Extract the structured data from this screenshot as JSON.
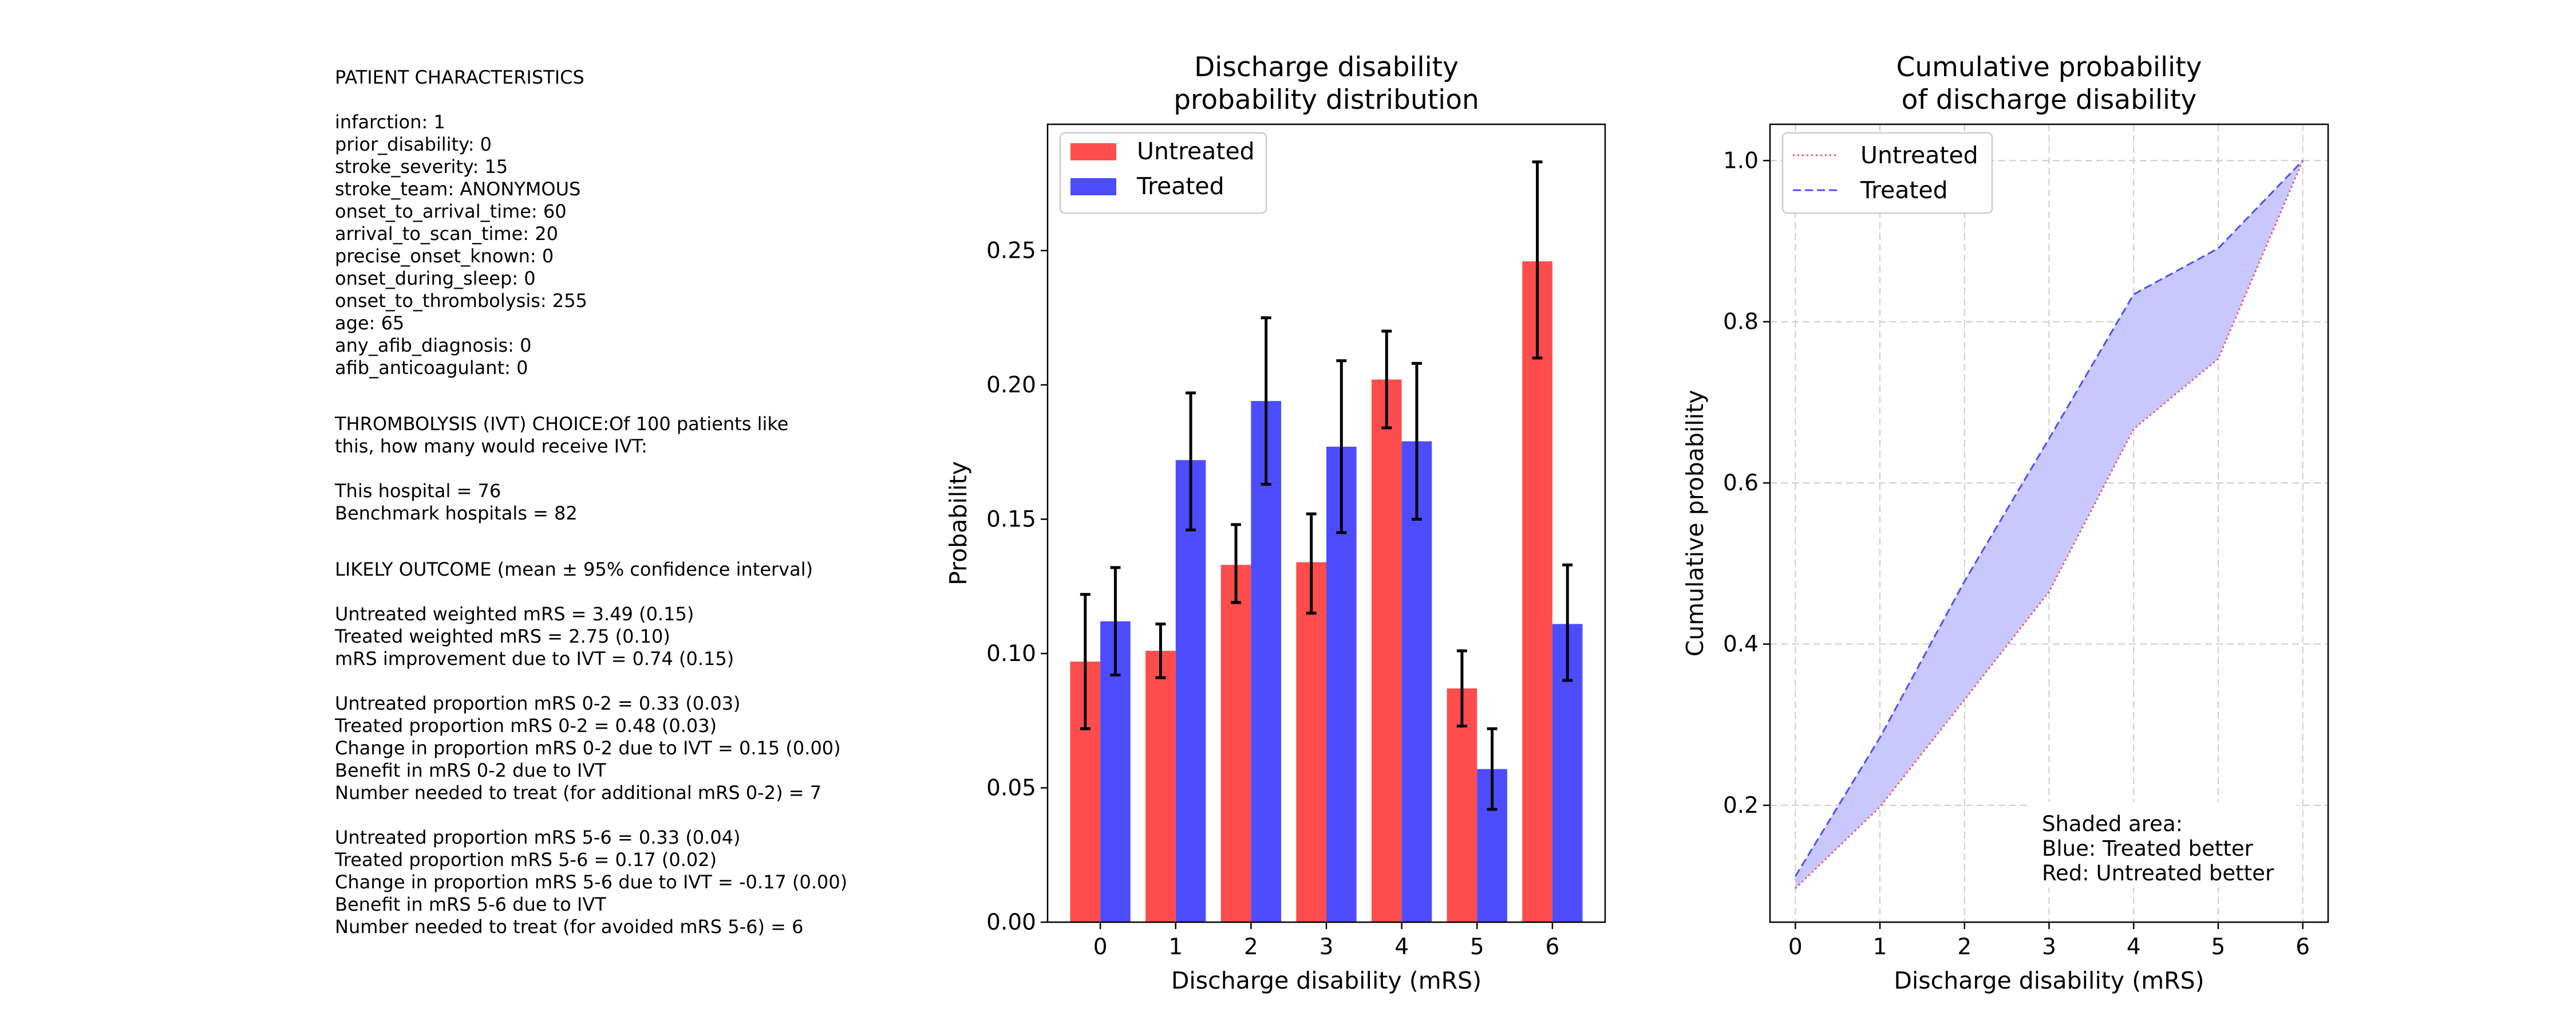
{
  "text_panel": {
    "patient_heading": "PATIENT CHARACTERISTICS",
    "patient_lines": [
      "infarction: 1",
      "prior_disability: 0",
      "stroke_severity: 15",
      "stroke_team: ANONYMOUS",
      "onset_to_arrival_time: 60",
      "arrival_to_scan_time: 20",
      "precise_onset_known: 0",
      "onset_during_sleep: 0",
      "onset_to_thrombolysis: 255",
      "age: 65",
      "any_afib_diagnosis: 0",
      "afib_anticoagulant: 0"
    ],
    "ivt_heading_lines": [
      "THROMBOLYSIS (IVT) CHOICE:Of 100 patients like",
      "this, how many would receive IVT:"
    ],
    "ivt_lines": [
      "This hospital = 76",
      "Benchmark hospitals = 82"
    ],
    "outcome_heading": "LIKELY OUTCOME (mean ± 95% confidence interval)",
    "outcome_group1": [
      "Untreated weighted mRS = 3.49 (0.15)",
      "Treated weighted mRS = 2.75 (0.10)",
      "mRS improvement due to IVT = 0.74 (0.15)"
    ],
    "outcome_group2": [
      "Untreated proportion mRS 0-2 = 0.33 (0.03)",
      "Treated proportion mRS 0-2 = 0.48 (0.03)",
      "Change in proportion mRS 0-2 due to IVT = 0.15 (0.00)",
      "Benefit in mRS 0-2 due to IVT",
      "Number needed to treat (for additional mRS 0-2) = 7"
    ],
    "outcome_group3": [
      "Untreated proportion mRS 5-6 = 0.33 (0.04)",
      "Treated proportion mRS 5-6 = 0.17 (0.02)",
      "Change in proportion mRS 5-6 due to IVT = -0.17 (0.00)",
      "Benefit in mRS 5-6 due to IVT",
      "Number needed to treat (for avoided mRS 5-6) = 6"
    ]
  },
  "colors": {
    "untreated": "#ff4d4d",
    "treated": "#4d4dff",
    "shade": "#c8c8ff",
    "error_bar": "#000000",
    "grid": "#cccccc"
  },
  "chart_data": [
    {
      "type": "bar",
      "title": [
        "Discharge disability",
        "probability distribution"
      ],
      "xlabel": "Discharge disability (mRS)",
      "ylabel": "Probability",
      "categories": [
        "0",
        "1",
        "2",
        "3",
        "4",
        "5",
        "6"
      ],
      "ylim": [
        0,
        0.297
      ],
      "yticks": [
        0.0,
        0.05,
        0.1,
        0.15,
        0.2,
        0.25
      ],
      "ytick_labels": [
        "0.00",
        "0.05",
        "0.10",
        "0.15",
        "0.20",
        "0.25"
      ],
      "grid": false,
      "legend": "top-left",
      "series": [
        {
          "name": "Untreated",
          "values": [
            0.097,
            0.101,
            0.133,
            0.134,
            0.202,
            0.087,
            0.246
          ],
          "err_low": [
            0.072,
            0.091,
            0.119,
            0.115,
            0.184,
            0.073,
            0.21
          ],
          "err_high": [
            0.122,
            0.111,
            0.148,
            0.152,
            0.22,
            0.101,
            0.283
          ]
        },
        {
          "name": "Treated",
          "values": [
            0.112,
            0.172,
            0.194,
            0.177,
            0.179,
            0.057,
            0.111
          ],
          "err_low": [
            0.092,
            0.146,
            0.163,
            0.145,
            0.15,
            0.042,
            0.09
          ],
          "err_high": [
            0.132,
            0.197,
            0.225,
            0.209,
            0.208,
            0.072,
            0.133
          ]
        }
      ]
    },
    {
      "type": "line",
      "title": [
        "Cumulative probability",
        "of discharge disability"
      ],
      "xlabel": "Discharge disability (mRS)",
      "ylabel": "Cumulative probability",
      "x": [
        0,
        1,
        2,
        3,
        4,
        5,
        6
      ],
      "xlim": [
        -0.3,
        6.3
      ],
      "ylim": [
        0.055,
        1.045
      ],
      "yticks": [
        0.2,
        0.4,
        0.6,
        0.8,
        1.0
      ],
      "ytick_labels": [
        "0.2",
        "0.4",
        "0.6",
        "0.8",
        "1.0"
      ],
      "grid": true,
      "legend": "top-left",
      "series": [
        {
          "name": "Untreated",
          "style": "dotted",
          "values": [
            0.097,
            0.198,
            0.331,
            0.465,
            0.667,
            0.754,
            1.0
          ]
        },
        {
          "name": "Treated",
          "style": "dashed",
          "values": [
            0.112,
            0.284,
            0.478,
            0.655,
            0.834,
            0.891,
            1.0
          ]
        }
      ],
      "annotation": [
        "Shaded area:",
        "Blue: Treated better",
        "Red: Untreated better"
      ]
    }
  ]
}
